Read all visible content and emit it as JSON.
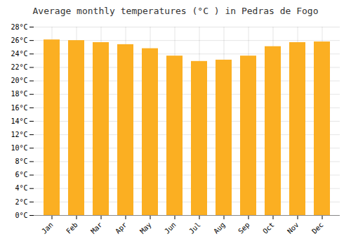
{
  "chart_data": {
    "type": "bar",
    "title": "Average monthly temperatures (°C ) in Pedras de Fogo",
    "categories": [
      "Jan",
      "Feb",
      "Mar",
      "Apr",
      "May",
      "Jun",
      "Jul",
      "Aug",
      "Sep",
      "Oct",
      "Nov",
      "Dec"
    ],
    "values": [
      26.1,
      26.0,
      25.7,
      25.4,
      24.8,
      23.7,
      22.9,
      23.1,
      23.7,
      25.1,
      25.7,
      25.8
    ],
    "color": "#FBAF22",
    "ylim": [
      0,
      28
    ],
    "yticks": [
      {
        "value": 0,
        "label": "0°C"
      },
      {
        "value": 2,
        "label": "2°C"
      },
      {
        "value": 4,
        "label": "4°C"
      },
      {
        "value": 6,
        "label": "6°C"
      },
      {
        "value": 8,
        "label": "8°C"
      },
      {
        "value": 10,
        "label": "10°C"
      },
      {
        "value": 12,
        "label": "12°C"
      },
      {
        "value": 14,
        "label": "14°C"
      },
      {
        "value": 16,
        "label": "16°C"
      },
      {
        "value": 18,
        "label": "18°C"
      },
      {
        "value": 20,
        "label": "20°C"
      },
      {
        "value": 22,
        "label": "22°C"
      },
      {
        "value": 24,
        "label": "24°C"
      },
      {
        "value": 26,
        "label": "26°C"
      },
      {
        "value": 28,
        "label": "28°C"
      }
    ],
    "grid": true
  }
}
